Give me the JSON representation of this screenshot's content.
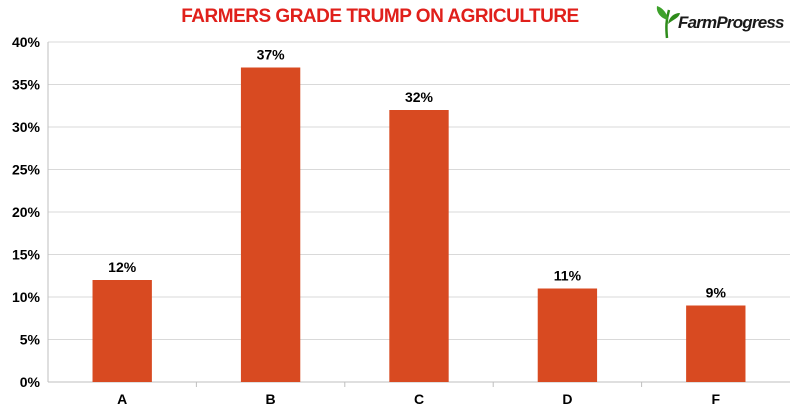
{
  "logo": {
    "text": "FarmProgress",
    "color": "#2e8b1a"
  },
  "chart_data": {
    "type": "bar",
    "title": "FARMERS GRADE TRUMP ON AGRICULTURE",
    "categories": [
      "A",
      "B",
      "C",
      "D",
      "F"
    ],
    "values": [
      12,
      37,
      32,
      11,
      9
    ],
    "data_labels": [
      "12%",
      "37%",
      "32%",
      "11%",
      "9%"
    ],
    "y_ticks": [
      "0%",
      "5%",
      "10%",
      "15%",
      "20%",
      "25%",
      "30%",
      "35%",
      "40%"
    ],
    "ylim": [
      0,
      40
    ],
    "xlabel": "",
    "ylabel": "",
    "grid": true,
    "bar_color": "#d84a21",
    "title_color": "#e0201b"
  }
}
